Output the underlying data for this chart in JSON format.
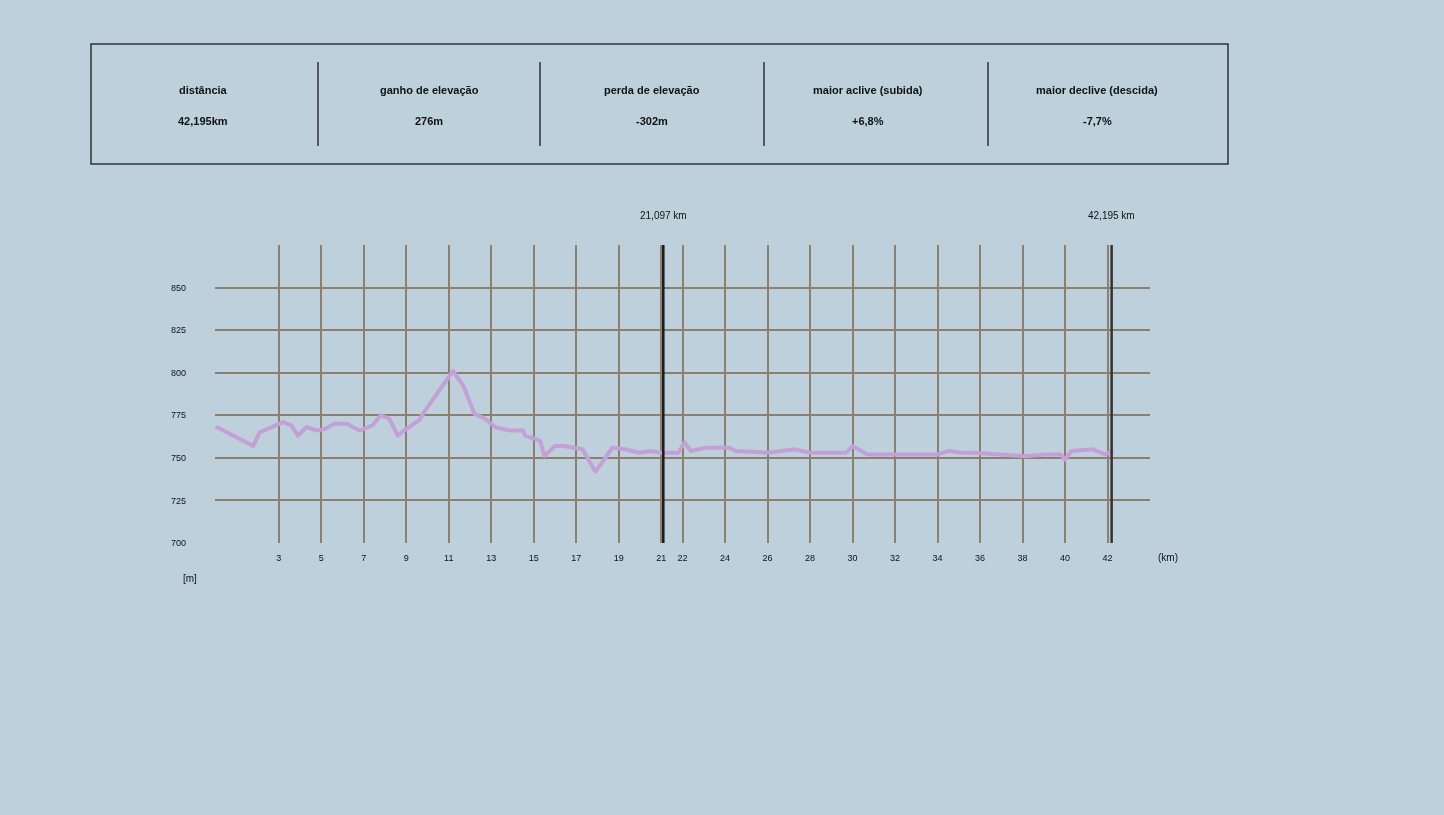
{
  "chart_data": {
    "type": "line",
    "annotations": [
      "distância",
      "42,195km",
      "ganho de elevação",
      "276m",
      "perda de elevação",
      "-302m",
      "maior aclive (subida)",
      "+6,8%",
      "maior declive (descida)",
      "-7,7%"
    ],
    "xlabel": "(km)",
    "ylabel": "[m]",
    "x": [
      0.1,
      1.8,
      2.1,
      3.2,
      3.6,
      3.9,
      4.3,
      4.8,
      5.2,
      5.6,
      6.2,
      6.8,
      7.4,
      7.8,
      8.2,
      8.6,
      9.0,
      9.6,
      9.9,
      11.2,
      11.7,
      12.2,
      12.7,
      13.2,
      13.9,
      14.5,
      14.6,
      15.3,
      15.5,
      16.0,
      16.4,
      17.3,
      17.8,
      17.9,
      18.2,
      18.7,
      19.3,
      20.0,
      20.5,
      21.0,
      21.8,
      22.1,
      22.4,
      23.1,
      24.2,
      24.5,
      26.0,
      27.3,
      28.0,
      29.7,
      30.0,
      30.7,
      34.0,
      34.5,
      35.2,
      35.7,
      38.1,
      39.1,
      39.8,
      40.0,
      40.3,
      41.3,
      41.9,
      42.2
    ],
    "series": [
      {
        "color": "#c3a0d6",
        "values": [
          768,
          757,
          765,
          771,
          769,
          763,
          768,
          766,
          767,
          770,
          770,
          766,
          769,
          775,
          773,
          763,
          767,
          772,
          778,
          801,
          792,
          776,
          773,
          768,
          766,
          766,
          763,
          760,
          751,
          757,
          757,
          755,
          744,
          742,
          747,
          756,
          755,
          753,
          754,
          753,
          753,
          759,
          754,
          756,
          756,
          754,
          753,
          755,
          753,
          753,
          757,
          752,
          752,
          754,
          753,
          753,
          751,
          752,
          752,
          749,
          754,
          755,
          752,
          754
        ]
      }
    ],
    "xlim": [
      0,
      44
    ],
    "ylim": [
      700,
      875
    ],
    "xticks": [
      3,
      5,
      7,
      9,
      11,
      13,
      15,
      17,
      19,
      21,
      22,
      24,
      26,
      28,
      30,
      32,
      34,
      36,
      38,
      40,
      42
    ],
    "yticks": [
      700,
      725,
      750,
      775,
      800,
      825,
      850
    ],
    "grid": true,
    "ref_lines": [
      {
        "axis": "x",
        "value": 21.097,
        "label": "21,097 km",
        "color": "#1a1a1a"
      },
      {
        "axis": "x",
        "value": 42.195,
        "label": "42,195 km",
        "color": "#333333"
      }
    ]
  }
}
